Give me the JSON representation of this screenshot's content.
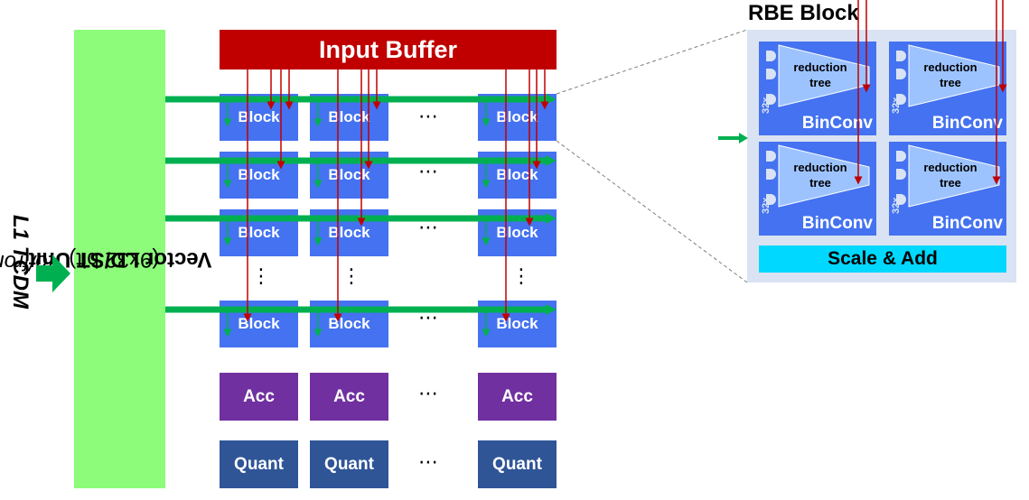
{
  "side_label": {
    "prefix": "to/from ",
    "bold": "L1 TCDM"
  },
  "vector_unit": {
    "bold": "Vector LD/ST Unit",
    "rest": "  (9x32 bit)"
  },
  "input_buffer": {
    "label": "Input Buffer"
  },
  "block_label": "Block",
  "acc_label": "Acc",
  "quant_label": "Quant",
  "dots_h": "⋯",
  "dots_v": "⋮",
  "rbe": {
    "title": "RBE Block",
    "binconv_label": "BinConv",
    "tree_label": "reduction\ntree",
    "x32_label": "32x",
    "scale_add": "Scale & Add"
  },
  "colors": {
    "vector_unit": "#8cfc7a",
    "input_buffer": "#c00000",
    "block": "#4472f0",
    "acc": "#7030a0",
    "quant": "#2f5597",
    "rbe_box": "#dae3f3",
    "scale_add": "#00d8ff",
    "green_arrow": "#00b050",
    "red_arrow": "#c00000"
  }
}
